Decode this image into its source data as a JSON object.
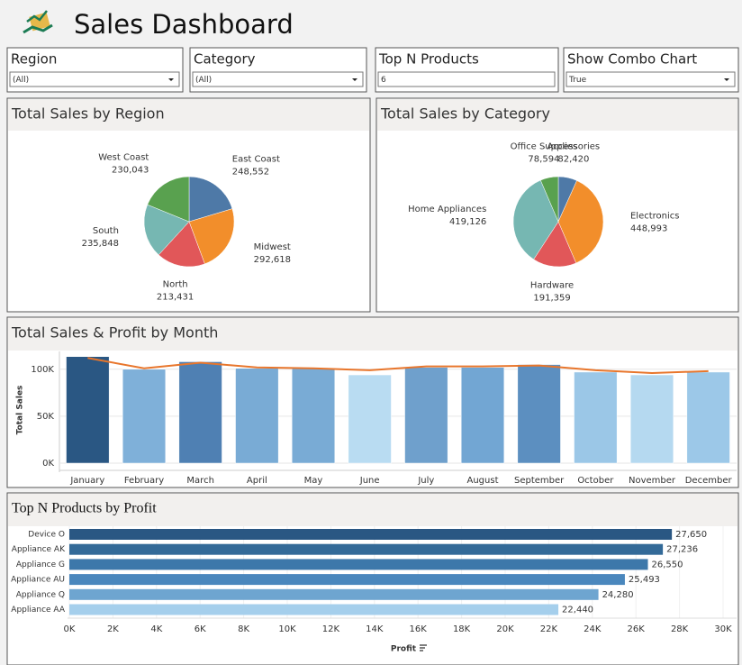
{
  "header": {
    "title": "Sales Dashboard"
  },
  "filters": [
    {
      "label": "Region",
      "value": "(All)"
    },
    {
      "label": "Category",
      "value": "(All)"
    },
    {
      "label": "Top N Products",
      "value": "6"
    },
    {
      "label": "Show Combo Chart",
      "value": "True"
    }
  ],
  "chart_data": [
    {
      "type": "pie",
      "title": "Total Sales by Region",
      "categories": [
        "East Coast",
        "Midwest",
        "North",
        "South",
        "West Coast"
      ],
      "values": [
        248552,
        292618,
        213431,
        235848,
        230043
      ],
      "value_labels": [
        "248,552",
        "292,618",
        "213,431",
        "235,848",
        "230,043"
      ],
      "colors": [
        "#4e79a7",
        "#f28e2b",
        "#e15759",
        "#76b7b2",
        "#59a14f"
      ]
    },
    {
      "type": "pie",
      "title": "Total Sales by Category",
      "categories": [
        "Accessories",
        "Electronics",
        "Hardware",
        "Home Appliances",
        "Office Supplies"
      ],
      "values": [
        82420,
        448993,
        191359,
        419126,
        78594
      ],
      "value_labels": [
        "82,420",
        "448,993",
        "191,359",
        "419,126",
        "78,594"
      ],
      "colors": [
        "#4e79a7",
        "#f28e2b",
        "#e15759",
        "#76b7b2",
        "#59a14f"
      ]
    },
    {
      "type": "combo",
      "title": "Total Sales & Profit by Month",
      "y_label": "Total Sales",
      "categories": [
        "January",
        "February",
        "March",
        "April",
        "May",
        "June",
        "July",
        "August",
        "September",
        "October",
        "November",
        "December"
      ],
      "series": [
        {
          "type": "bar",
          "values": [
            113500,
            100000,
            108000,
            101000,
            101000,
            94000,
            102000,
            102000,
            105000,
            97000,
            94000,
            97000
          ],
          "colors": [
            "#2a5783",
            "#7fb0d9",
            "#4f80b3",
            "#79abd5",
            "#79abd5",
            "#b9dcf2",
            "#6fa0cc",
            "#72a6d3",
            "#5c8fc0",
            "#9bc7e7",
            "#b5d9f0",
            "#9cc8e8"
          ]
        },
        {
          "type": "line",
          "color": "#e8762c",
          "values": [
            112000,
            101000,
            107000,
            102000,
            101000,
            99000,
            103000,
            103000,
            104000,
            99000,
            96000,
            98000
          ]
        }
      ],
      "ylim": [
        0,
        119000
      ],
      "yticks": [
        {
          "value": 0,
          "label": "0K"
        },
        {
          "value": 50000,
          "label": "50K"
        },
        {
          "value": 100000,
          "label": "100K"
        }
      ],
      "grid": true
    },
    {
      "type": "hbar",
      "title": "Top N Products by Profit",
      "x_label": "Profit",
      "categories": [
        "Device O",
        "Appliance AK",
        "Appliance G",
        "Appliance AU",
        "Appliance Q",
        "Appliance AA"
      ],
      "values": [
        27650,
        27236,
        26550,
        25493,
        24280,
        22440
      ],
      "value_labels": [
        "27,650",
        "27,236",
        "26,550",
        "25,493",
        "24,280",
        "22,440"
      ],
      "colors": [
        "#2a5783",
        "#336a98",
        "#3d78aa",
        "#4a87bd",
        "#6ea5d0",
        "#a5cfec"
      ],
      "xlim": [
        0,
        30000
      ],
      "xticks": [
        {
          "value": 0,
          "label": "0K"
        },
        {
          "value": 2000,
          "label": "2K"
        },
        {
          "value": 4000,
          "label": "4K"
        },
        {
          "value": 6000,
          "label": "6K"
        },
        {
          "value": 8000,
          "label": "8K"
        },
        {
          "value": 10000,
          "label": "10K"
        },
        {
          "value": 12000,
          "label": "12K"
        },
        {
          "value": 14000,
          "label": "14K"
        },
        {
          "value": 16000,
          "label": "16K"
        },
        {
          "value": 18000,
          "label": "18K"
        },
        {
          "value": 20000,
          "label": "20K"
        },
        {
          "value": 22000,
          "label": "22K"
        },
        {
          "value": 24000,
          "label": "24K"
        },
        {
          "value": 26000,
          "label": "26K"
        },
        {
          "value": 28000,
          "label": "28K"
        },
        {
          "value": 30000,
          "label": "30K"
        }
      ],
      "grid": true
    }
  ]
}
